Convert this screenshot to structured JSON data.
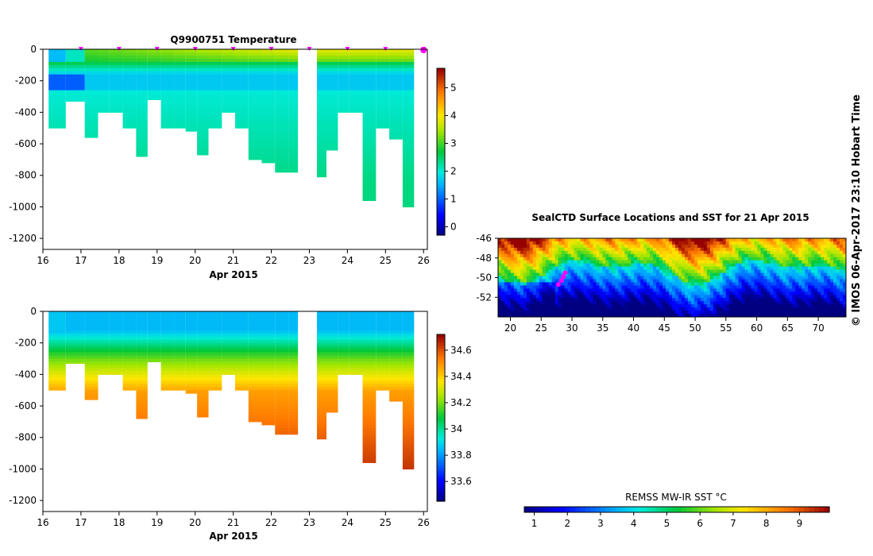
{
  "chart_data": [
    {
      "type": "heatmap",
      "title": "Q9900751  Temperature",
      "xlabel": "Apr 2015",
      "x_ticks": [
        "16",
        "17",
        "18",
        "19",
        "20",
        "21",
        "22",
        "23",
        "24",
        "25",
        "26"
      ],
      "xlim": [
        16,
        26.1
      ],
      "y_ticks": [
        "0",
        "-200",
        "-400",
        "-600",
        "-800",
        "-1000",
        "-1200"
      ],
      "ylim": [
        -1270,
        0
      ],
      "colorbar": {
        "ticks": [
          "0",
          "1",
          "2",
          "3",
          "4",
          "5"
        ],
        "range": [
          -0.3,
          5.7
        ]
      },
      "profile_times": [
        16.3,
        16.9,
        17.3,
        17.6,
        17.9,
        18.3,
        18.6,
        18.9,
        19.3,
        19.6,
        19.9,
        20.2,
        20.5,
        20.9,
        21.2,
        21.6,
        21.9,
        22.3,
        22.6,
        23.3,
        23.6,
        23.9,
        24.2,
        24.6,
        24.9,
        25.3,
        25.6
      ],
      "profile_depths": [
        -500,
        -330,
        -560,
        -400,
        -400,
        -500,
        -680,
        -320,
        -500,
        -500,
        -520,
        -670,
        -500,
        -400,
        -500,
        -700,
        -720,
        -780,
        -780,
        -810,
        -640,
        -400,
        -400,
        -960,
        -500,
        -570,
        -1000
      ],
      "surface_markers": [
        17.0,
        18.0,
        19.0,
        20.0,
        21.0,
        22.0,
        23.0,
        24.0,
        25.0,
        26.0
      ],
      "missing_interval": [
        22.7,
        23.2
      ]
    },
    {
      "type": "heatmap",
      "title": "",
      "xlabel": "Apr 2015",
      "x_ticks": [
        "16",
        "17",
        "18",
        "19",
        "20",
        "21",
        "22",
        "23",
        "24",
        "25",
        "26"
      ],
      "xlim": [
        16,
        26.1
      ],
      "y_ticks": [
        "0",
        "-200",
        "-400",
        "-600",
        "-800",
        "-1000",
        "-1200"
      ],
      "ylim": [
        -1270,
        0
      ],
      "colorbar": {
        "ticks": [
          "33.6",
          "33.8",
          "34",
          "34.2",
          "34.4",
          "34.6"
        ],
        "range": [
          33.45,
          34.72
        ]
      },
      "profile_times": [
        16.3,
        16.9,
        17.3,
        17.6,
        17.9,
        18.3,
        18.6,
        18.9,
        19.3,
        19.6,
        19.9,
        20.2,
        20.5,
        20.9,
        21.2,
        21.6,
        21.9,
        22.3,
        22.6,
        23.3,
        23.6,
        23.9,
        24.2,
        24.6,
        24.9,
        25.3,
        25.6
      ],
      "profile_depths": [
        -500,
        -330,
        -560,
        -400,
        -400,
        -500,
        -680,
        -320,
        -500,
        -500,
        -520,
        -670,
        -500,
        -400,
        -500,
        -700,
        -720,
        -780,
        -780,
        -810,
        -640,
        -400,
        -400,
        -960,
        -500,
        -570,
        -1000
      ],
      "missing_interval": [
        22.7,
        23.2
      ]
    },
    {
      "type": "heatmap",
      "title": "SealCTD Surface Locations and SST for 21 Apr 2015",
      "x_ticks": [
        "20",
        "25",
        "30",
        "35",
        "40",
        "45",
        "50",
        "55",
        "60",
        "65",
        "70"
      ],
      "xlim": [
        18,
        74.5
      ],
      "y_ticks": [
        "-46",
        "-48",
        "-50",
        "-52"
      ],
      "ylim": [
        -54,
        -46
      ],
      "colorbar": {
        "label": "REMSS MW-IR SST °C",
        "ticks": [
          "1",
          "2",
          "3",
          "4",
          "5",
          "6",
          "7",
          "8",
          "9"
        ],
        "range": [
          0.7,
          9.9
        ]
      },
      "seal_track": [
        [
          28.6,
          -49.9
        ],
        [
          28.3,
          -50.3
        ],
        [
          27.8,
          -50.7
        ],
        [
          28.9,
          -49.5
        ]
      ],
      "seal_track_color": "#ff00ff"
    }
  ],
  "credit": "© IMOS 06-Apr-2017 23:10 Hobart Time",
  "colors": {
    "profile_marker": "#ff00ff",
    "missing": "#ffffff"
  }
}
